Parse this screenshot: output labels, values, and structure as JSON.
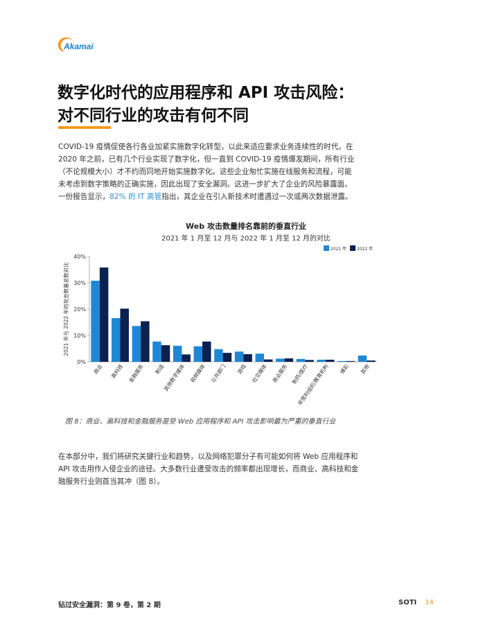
{
  "logo": {
    "text": "Akamai",
    "color": "#f39a1e",
    "text_color": "#1a7fc7"
  },
  "title": {
    "line1": "数字化时代的应用程序和 API 攻击风险：",
    "line2": "对不同行业的攻击有何不同"
  },
  "intro": {
    "line1": "COVID-19 疫情促使各行各业加紧实施数字化转型，以此来适应要求业务连续性的时代。在",
    "line2": "2020 年之前，已有几个行业实现了数字化，但一直到 COVID-19 疫情爆发期间，所有行业",
    "line3": "（不论规模大小）才不约而同地开始实施数字化。这些企业匆忙实施在线服务和流程，可能",
    "line4": "未考虑到数字策略的正确实施，因此出现了安全漏洞。这进一步扩大了企业的风险暴露面。",
    "line5_pre": "一份报告显示，",
    "line5_link": "82% 的 IT 高管",
    "line5_post": "指出，其企业在引入新技术时遭遇过一次或两次数据泄露。"
  },
  "chart_data": {
    "type": "bar",
    "title": "Web 攻击数量排名靠前的垂直行业",
    "subtitle": "2021 年 1 月至 12 月与 2022 年 1 月至 12 月的对比",
    "ylabel": "2021 年与 2022 年的攻击数量总数对比",
    "xlabel": "",
    "ylim": [
      0,
      40
    ],
    "yticks": [
      "0%",
      "10%",
      "20%",
      "30%",
      "40%"
    ],
    "legend_position": "top-right",
    "categories": [
      "商业",
      "高科技",
      "金融服务",
      "制造",
      "其他数字媒体",
      "视频媒体",
      "公共部门",
      "游戏",
      "社交媒体",
      "商业服务",
      "制药/医疗",
      "非营利组织/教育机构",
      "博彩",
      "其他"
    ],
    "series": [
      {
        "name": "2021 年",
        "color": "#1e88d6",
        "values": [
          30.8,
          16.6,
          13.6,
          7.7,
          6.1,
          5.9,
          4.8,
          3.9,
          3.1,
          1.2,
          1.1,
          0.8,
          0.3,
          2.4
        ]
      },
      {
        "name": "2022 年",
        "color": "#0b2150",
        "values": [
          35.8,
          20.2,
          15.4,
          6.3,
          2.8,
          7.7,
          3.4,
          2.9,
          0.9,
          1.3,
          0.7,
          0.8,
          0.3,
          0.5
        ]
      }
    ]
  },
  "caption": "图 8：商业、高科技和金融服务是受 Web 应用程序和 API 攻击影响最为严重的垂直行业",
  "body2": {
    "line1": "在本部分中，我们将研究关键行业和趋势，以及网络犯罪分子有可能如何将 Web 应用程序和",
    "line2": "API 攻击用作入侵企业的途径。大多数行业遭受攻击的频率都出现增长，而商业、高科技和金",
    "line3": "融服务行业则首当其冲（图 8）。"
  },
  "footer": {
    "left": "钻过安全漏洞：第 9 卷，第 2 期",
    "brand": "SOTI",
    "page": "14"
  }
}
